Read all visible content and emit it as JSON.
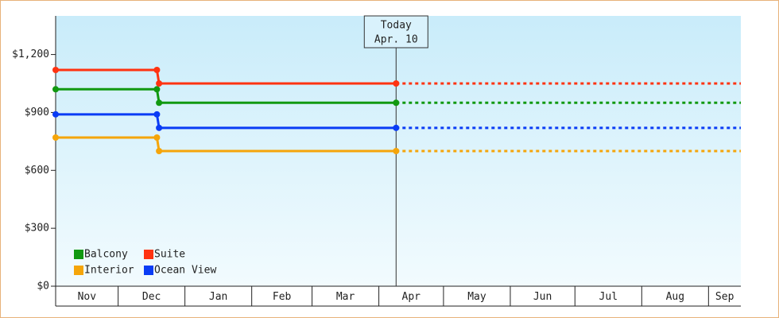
{
  "chart_data": {
    "type": "step-line",
    "x": [
      0,
      47,
      48,
      158
    ],
    "xlim": [
      0,
      318
    ],
    "xticks": [
      {
        "value": 0,
        "label": "Nov"
      },
      {
        "value": 29,
        "label": "Dec"
      },
      {
        "value": 60,
        "label": "Jan"
      },
      {
        "value": 91,
        "label": "Feb"
      },
      {
        "value": 119,
        "label": "Mar"
      },
      {
        "value": 150,
        "label": "Apr"
      },
      {
        "value": 180,
        "label": "May"
      },
      {
        "value": 211,
        "label": "Jun"
      },
      {
        "value": 241,
        "label": "Jul"
      },
      {
        "value": 272,
        "label": "Aug"
      },
      {
        "value": 303,
        "label": "Sep"
      }
    ],
    "ylim": [
      0,
      1400
    ],
    "yticks": [
      {
        "value": 0,
        "label": "$0"
      },
      {
        "value": 300,
        "label": "$300"
      },
      {
        "value": 600,
        "label": "$600"
      },
      {
        "value": 900,
        "label": "$900"
      },
      {
        "value": 1200,
        "label": "$1,200"
      }
    ],
    "today": {
      "x": 158,
      "label": "Today",
      "date_label": "Apr. 10"
    },
    "series": [
      {
        "name": "Balcony",
        "color": "#119911",
        "values": [
          1020,
          1020,
          950,
          950
        ]
      },
      {
        "name": "Suite",
        "color": "#ff3311",
        "values": [
          1120,
          1120,
          1050,
          1050
        ]
      },
      {
        "name": "Interior",
        "color": "#f5a50a",
        "values": [
          770,
          770,
          700,
          700
        ]
      },
      {
        "name": "Ocean View",
        "color": "#0a3cf5",
        "values": [
          890,
          890,
          820,
          820
        ]
      }
    ]
  }
}
